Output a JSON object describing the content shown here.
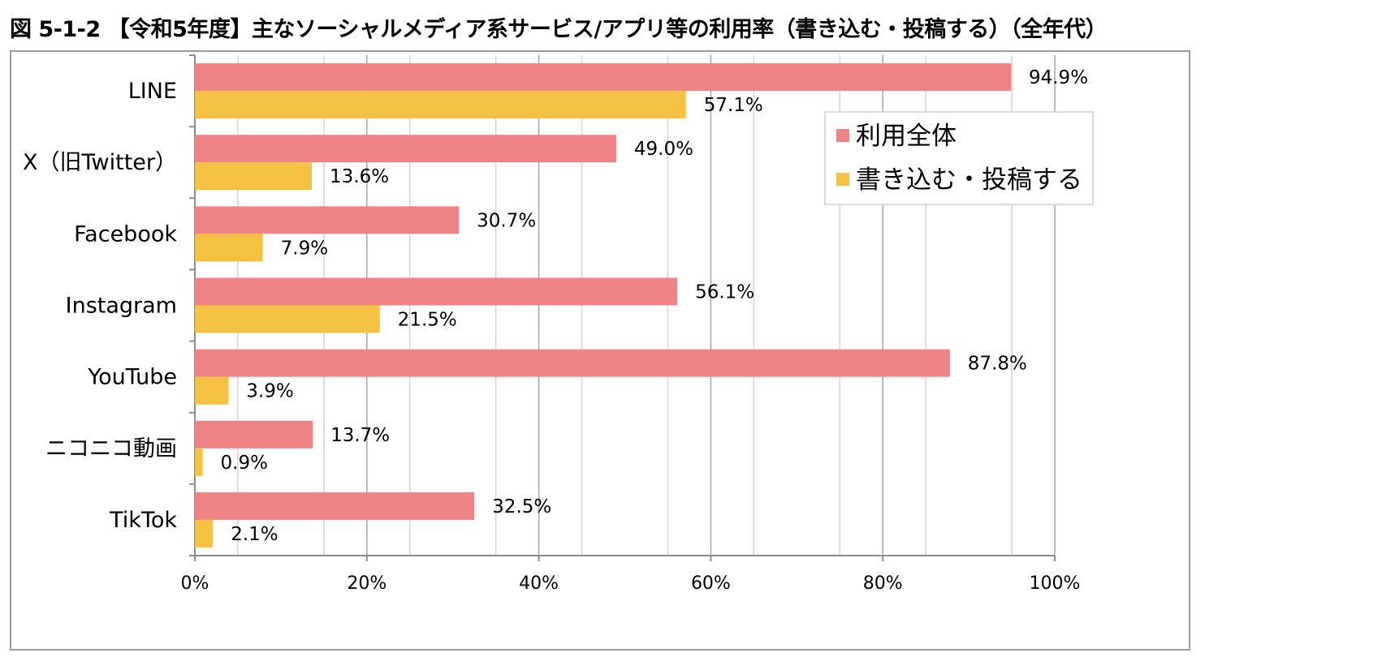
{
  "title": "図 5-1-2 【令和5年度】主なソーシャルメディア系サービス/アプリ等の利用率（書き込む・投稿する）（全年代）",
  "chart_data": {
    "type": "bar",
    "orientation": "horizontal",
    "categories": [
      "LINE",
      "X（旧Twitter）",
      "Facebook",
      "Instagram",
      "YouTube",
      "ニコニコ動画",
      "TikTok"
    ],
    "series": [
      {
        "name": "利用全体",
        "color": "#ee8485",
        "values": [
          94.9,
          49.0,
          30.7,
          56.1,
          87.8,
          13.7,
          32.5
        ],
        "labels": [
          "94.9%",
          "49.0%",
          "30.7%",
          "56.1%",
          "87.8%",
          "13.7%",
          "32.5%"
        ]
      },
      {
        "name": "書き込む・投稿する",
        "color": "#f5c143",
        "values": [
          57.1,
          13.6,
          7.9,
          21.5,
          3.9,
          0.9,
          2.1
        ],
        "labels": [
          "57.1%",
          "13.6%",
          "7.9%",
          "21.5%",
          "3.9%",
          "0.9%",
          "2.1%"
        ]
      }
    ],
    "xlim": [
      0,
      100
    ],
    "ticks": [
      0,
      20,
      40,
      60,
      80,
      100
    ],
    "tick_labels": [
      "0%",
      "20%",
      "40%",
      "60%",
      "80%",
      "100%"
    ],
    "grid": true,
    "minor_grid": true,
    "legend_position": "top-right",
    "xlabel": "",
    "ylabel": ""
  }
}
